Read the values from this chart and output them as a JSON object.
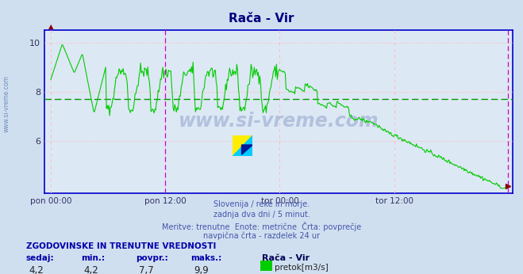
{
  "title": "Rača - Vir",
  "bg_color": "#d0dff0",
  "plot_bg_color": "#dde8f5",
  "line_color": "#00cc00",
  "avg_line_color": "#009900",
  "avg_value": 7.7,
  "ymin": 3.9,
  "ymax": 10.5,
  "yticks": [
    6,
    8,
    10
  ],
  "xtick_positions": [
    0,
    144,
    288,
    432,
    575
  ],
  "xtick_labels": [
    "pon 00:00",
    "pon 12:00",
    "tor 00:00",
    "tor 12:00",
    "tor 12:00"
  ],
  "xtick_labels_show": [
    "pon 00:00",
    "pon 12:00",
    "tor 00:00",
    "tor 12:00",
    ""
  ],
  "subtitle_lines": [
    "Slovenija / reke in morje.",
    "zadnja dva dni / 5 minut.",
    "Meritve: trenutne  Enote: metrične  Črta: povprečje",
    "navpična črta - razdelek 24 ur"
  ],
  "stats_header": "ZGODOVINSKE IN TRENUTNE VREDNOSTI",
  "stat_labels": [
    "sedaj:",
    "min.:",
    "povpr.:",
    "maks.:"
  ],
  "stat_values": [
    "4,2",
    "4,2",
    "7,7",
    "9,9"
  ],
  "legend_label": "Rača - Vir",
  "legend_unit": "pretok[m3/s]",
  "watermark": "www.si-vreme.com",
  "axis_color": "#0000cc",
  "grid_color_h": "#ffbbbb",
  "grid_color_v": "#ffbbbb",
  "vline_color": "#cc00cc",
  "text_color": "#4455aa",
  "title_color": "#000080",
  "stats_color": "#0000aa",
  "n_points": 576
}
